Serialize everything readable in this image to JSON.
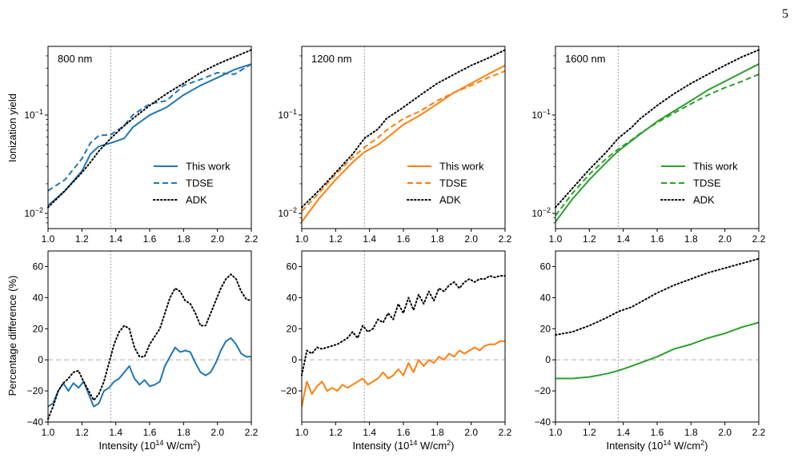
{
  "page_number": "5",
  "shared": {
    "xlabel_prefix": "Intensity (10",
    "xlabel_sup": "14",
    "xlabel_mid": " W/cm",
    "xlabel_sup2": "2",
    "xlabel_suffix": ")",
    "top_ylabel": "Ionization yield",
    "bottom_ylabel": "Percentage difference (%)",
    "xlim": [
      1.0,
      2.2
    ],
    "xticks": [
      "1.0",
      "1.2",
      "1.4",
      "1.6",
      "1.8",
      "2.0",
      "2.2"
    ],
    "vline_x": 1.37,
    "legend_labels": [
      "This work",
      "TDSE",
      "ADK"
    ],
    "log_ticks": [
      {
        "base": "10",
        "exp": "−2",
        "value": 0.01
      },
      {
        "base": "10",
        "exp": "−1",
        "value": 0.1
      }
    ]
  },
  "colors": {
    "blue": "#1f77b4",
    "orange": "#ff7f0e",
    "green": "#2ca02c",
    "black": "#000000",
    "grey": "#808080",
    "zero": "#bbbbbb"
  },
  "chart_data": [
    {
      "type": "line",
      "row": "top",
      "panel_label": "800 nm",
      "color": "blue",
      "yscale": "log",
      "ylim": [
        0.007,
        0.5
      ],
      "x": [
        1.0,
        1.1,
        1.2,
        1.25,
        1.3,
        1.37,
        1.45,
        1.5,
        1.6,
        1.7,
        1.8,
        1.9,
        2.0,
        2.1,
        2.2
      ],
      "series": [
        {
          "name": "This work",
          "style": "solid",
          "values": [
            0.012,
            0.017,
            0.027,
            0.04,
            0.048,
            0.052,
            0.058,
            0.075,
            0.1,
            0.12,
            0.16,
            0.2,
            0.24,
            0.29,
            0.33
          ]
        },
        {
          "name": "TDSE",
          "style": "dashed",
          "values": [
            0.017,
            0.022,
            0.036,
            0.052,
            0.062,
            0.063,
            0.078,
            0.1,
            0.13,
            0.14,
            0.2,
            0.23,
            0.27,
            0.26,
            0.33
          ]
        },
        {
          "name": "ADK",
          "style": "dotted",
          "values": [
            0.0115,
            0.017,
            0.026,
            0.033,
            0.043,
            0.058,
            0.078,
            0.092,
            0.125,
            0.165,
            0.21,
            0.27,
            0.33,
            0.39,
            0.46
          ]
        }
      ]
    },
    {
      "type": "line",
      "row": "top",
      "panel_label": "1200 nm",
      "color": "orange",
      "yscale": "log",
      "ylim": [
        0.007,
        0.5
      ],
      "x": [
        1.0,
        1.1,
        1.2,
        1.3,
        1.37,
        1.45,
        1.5,
        1.6,
        1.7,
        1.8,
        1.9,
        2.0,
        2.1,
        2.2
      ],
      "series": [
        {
          "name": "This work",
          "style": "solid",
          "values": [
            0.0082,
            0.014,
            0.022,
            0.033,
            0.042,
            0.05,
            0.058,
            0.08,
            0.1,
            0.13,
            0.17,
            0.21,
            0.26,
            0.32
          ]
        },
        {
          "name": "TDSE",
          "style": "dashed",
          "values": [
            0.0105,
            0.016,
            0.025,
            0.037,
            0.047,
            0.059,
            0.07,
            0.092,
            0.11,
            0.14,
            0.17,
            0.2,
            0.24,
            0.28
          ]
        },
        {
          "name": "ADK",
          "style": "dotted",
          "values": [
            0.0115,
            0.017,
            0.026,
            0.04,
            0.058,
            0.072,
            0.092,
            0.12,
            0.16,
            0.21,
            0.26,
            0.32,
            0.38,
            0.46
          ]
        }
      ]
    },
    {
      "type": "line",
      "row": "top",
      "panel_label": "1600 nm",
      "color": "green",
      "yscale": "log",
      "ylim": [
        0.007,
        0.5
      ],
      "x": [
        1.0,
        1.1,
        1.2,
        1.3,
        1.37,
        1.45,
        1.5,
        1.6,
        1.7,
        1.8,
        1.9,
        2.0,
        2.1,
        2.2
      ],
      "series": [
        {
          "name": "This work",
          "style": "solid",
          "values": [
            0.0082,
            0.014,
            0.022,
            0.033,
            0.043,
            0.055,
            0.064,
            0.086,
            0.11,
            0.14,
            0.18,
            0.22,
            0.27,
            0.33
          ]
        },
        {
          "name": "TDSE",
          "style": "dashed",
          "values": [
            0.0095,
            0.016,
            0.025,
            0.036,
            0.045,
            0.056,
            0.065,
            0.084,
            0.105,
            0.13,
            0.16,
            0.19,
            0.22,
            0.26
          ]
        },
        {
          "name": "ADK",
          "style": "dotted",
          "values": [
            0.0115,
            0.018,
            0.028,
            0.042,
            0.058,
            0.075,
            0.092,
            0.125,
            0.165,
            0.21,
            0.26,
            0.32,
            0.39,
            0.46
          ]
        }
      ]
    },
    {
      "type": "line",
      "row": "bottom",
      "color": "blue",
      "ylim": [
        -40,
        70
      ],
      "yticks": [
        "−40",
        "−20",
        "0",
        "20",
        "40",
        "60"
      ],
      "x": [
        1.0,
        1.03,
        1.06,
        1.09,
        1.12,
        1.15,
        1.18,
        1.21,
        1.24,
        1.27,
        1.3,
        1.33,
        1.36,
        1.39,
        1.42,
        1.45,
        1.48,
        1.51,
        1.54,
        1.57,
        1.6,
        1.63,
        1.66,
        1.69,
        1.72,
        1.75,
        1.78,
        1.81,
        1.84,
        1.87,
        1.9,
        1.93,
        1.96,
        1.99,
        2.02,
        2.05,
        2.08,
        2.11,
        2.14,
        2.17,
        2.2
      ],
      "series": [
        {
          "name": "This work",
          "style": "solid",
          "values": [
            -30,
            -28,
            -20,
            -15,
            -20,
            -15,
            -18,
            -14,
            -22,
            -30,
            -28,
            -20,
            -18,
            -14,
            -12,
            -8,
            -4,
            -12,
            -16,
            -13,
            -17,
            -16,
            -14,
            -4,
            2,
            8,
            5,
            6,
            5,
            -2,
            -8,
            -10,
            -8,
            -2,
            6,
            12,
            14,
            10,
            4,
            2,
            2
          ]
        },
        {
          "name": "ADK",
          "style": "dotted",
          "values": [
            -38,
            -30,
            -20,
            -15,
            -12,
            -8,
            -7,
            -14,
            -20,
            -26,
            -22,
            -14,
            -2,
            10,
            18,
            22,
            20,
            8,
            2,
            2,
            10,
            15,
            20,
            30,
            40,
            46,
            44,
            38,
            36,
            30,
            22,
            22,
            30,
            38,
            46,
            52,
            55,
            52,
            44,
            39,
            38
          ]
        }
      ]
    },
    {
      "type": "line",
      "row": "bottom",
      "color": "orange",
      "ylim": [
        -40,
        70
      ],
      "yticks": [
        "−20",
        "0",
        "20",
        "40",
        "60"
      ],
      "x": [
        1.0,
        1.03,
        1.06,
        1.09,
        1.12,
        1.15,
        1.18,
        1.21,
        1.24,
        1.27,
        1.3,
        1.33,
        1.36,
        1.39,
        1.42,
        1.45,
        1.48,
        1.51,
        1.54,
        1.57,
        1.6,
        1.63,
        1.66,
        1.69,
        1.72,
        1.75,
        1.78,
        1.81,
        1.84,
        1.87,
        1.9,
        1.93,
        1.96,
        1.99,
        2.02,
        2.05,
        2.08,
        2.11,
        2.14,
        2.17,
        2.2
      ],
      "series": [
        {
          "name": "This work",
          "style": "solid",
          "values": [
            -30,
            -14,
            -22,
            -17,
            -14,
            -20,
            -18,
            -20,
            -16,
            -18,
            -16,
            -14,
            -12,
            -16,
            -14,
            -12,
            -8,
            -12,
            -10,
            -6,
            -10,
            -2,
            -8,
            0,
            -4,
            0,
            -2,
            2,
            0,
            4,
            2,
            6,
            4,
            6,
            8,
            6,
            9,
            10,
            10,
            12,
            12
          ]
        },
        {
          "name": "ADK",
          "style": "dotted",
          "values": [
            -10,
            6,
            4,
            8,
            7,
            8,
            9,
            10,
            12,
            14,
            18,
            14,
            22,
            18,
            20,
            26,
            24,
            30,
            26,
            36,
            30,
            40,
            32,
            42,
            36,
            44,
            38,
            46,
            44,
            48,
            50,
            46,
            50,
            52,
            50,
            52,
            52,
            54,
            53,
            54,
            54
          ]
        }
      ]
    },
    {
      "type": "line",
      "row": "bottom",
      "color": "green",
      "ylim": [
        -40,
        70
      ],
      "yticks": [
        "−40",
        "−20",
        "0",
        "20",
        "40",
        "60"
      ],
      "x": [
        1.0,
        1.1,
        1.2,
        1.3,
        1.37,
        1.45,
        1.5,
        1.6,
        1.7,
        1.8,
        1.9,
        2.0,
        2.1,
        2.2
      ],
      "series": [
        {
          "name": "This work",
          "style": "solid",
          "values": [
            -12,
            -12,
            -11,
            -9,
            -7,
            -4,
            -2,
            2,
            7,
            10,
            14,
            17,
            21,
            24
          ]
        },
        {
          "name": "ADK",
          "style": "dotted",
          "values": [
            16,
            18,
            22,
            27,
            31,
            34,
            37,
            43,
            48,
            52,
            56,
            59,
            62,
            65
          ]
        }
      ]
    }
  ]
}
